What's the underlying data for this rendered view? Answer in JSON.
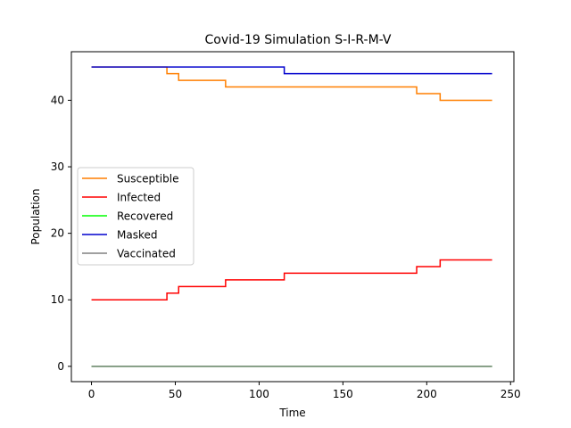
{
  "chart_data": {
    "type": "line",
    "title": "Covid-19 Simulation S-I-R-M-V",
    "xlabel": "Time",
    "ylabel": "Population",
    "xlim": [
      -12,
      252
    ],
    "ylim": [
      -2.3,
      47.3
    ],
    "xticks": [
      0,
      50,
      100,
      150,
      200,
      250
    ],
    "yticks": [
      0,
      10,
      20,
      30,
      40
    ],
    "grid": false,
    "legend_position": "center-left",
    "series": [
      {
        "name": "Susceptible",
        "color": "#ff7f00",
        "x": [
          0,
          45,
          45,
          52,
          52,
          80,
          80,
          194,
          194,
          208,
          208,
          239
        ],
        "y": [
          45,
          45,
          44,
          44,
          43,
          43,
          42,
          42,
          41,
          41,
          40,
          40
        ]
      },
      {
        "name": "Infected",
        "color": "#ff0000",
        "x": [
          0,
          45,
          45,
          52,
          52,
          80,
          80,
          115,
          115,
          194,
          194,
          208,
          208,
          239
        ],
        "y": [
          10,
          10,
          11,
          11,
          12,
          12,
          13,
          13,
          14,
          14,
          15,
          15,
          16,
          16
        ]
      },
      {
        "name": "Recovered",
        "color": "#00ff00",
        "x": [
          0,
          239
        ],
        "y": [
          0,
          0
        ]
      },
      {
        "name": "Masked",
        "color": "#0000cd",
        "x": [
          0,
          115,
          115,
          239
        ],
        "y": [
          45,
          45,
          44,
          44
        ]
      },
      {
        "name": "Vaccinated",
        "color": "#808080",
        "x": [
          0,
          239
        ],
        "y": [
          0,
          0
        ]
      }
    ]
  }
}
